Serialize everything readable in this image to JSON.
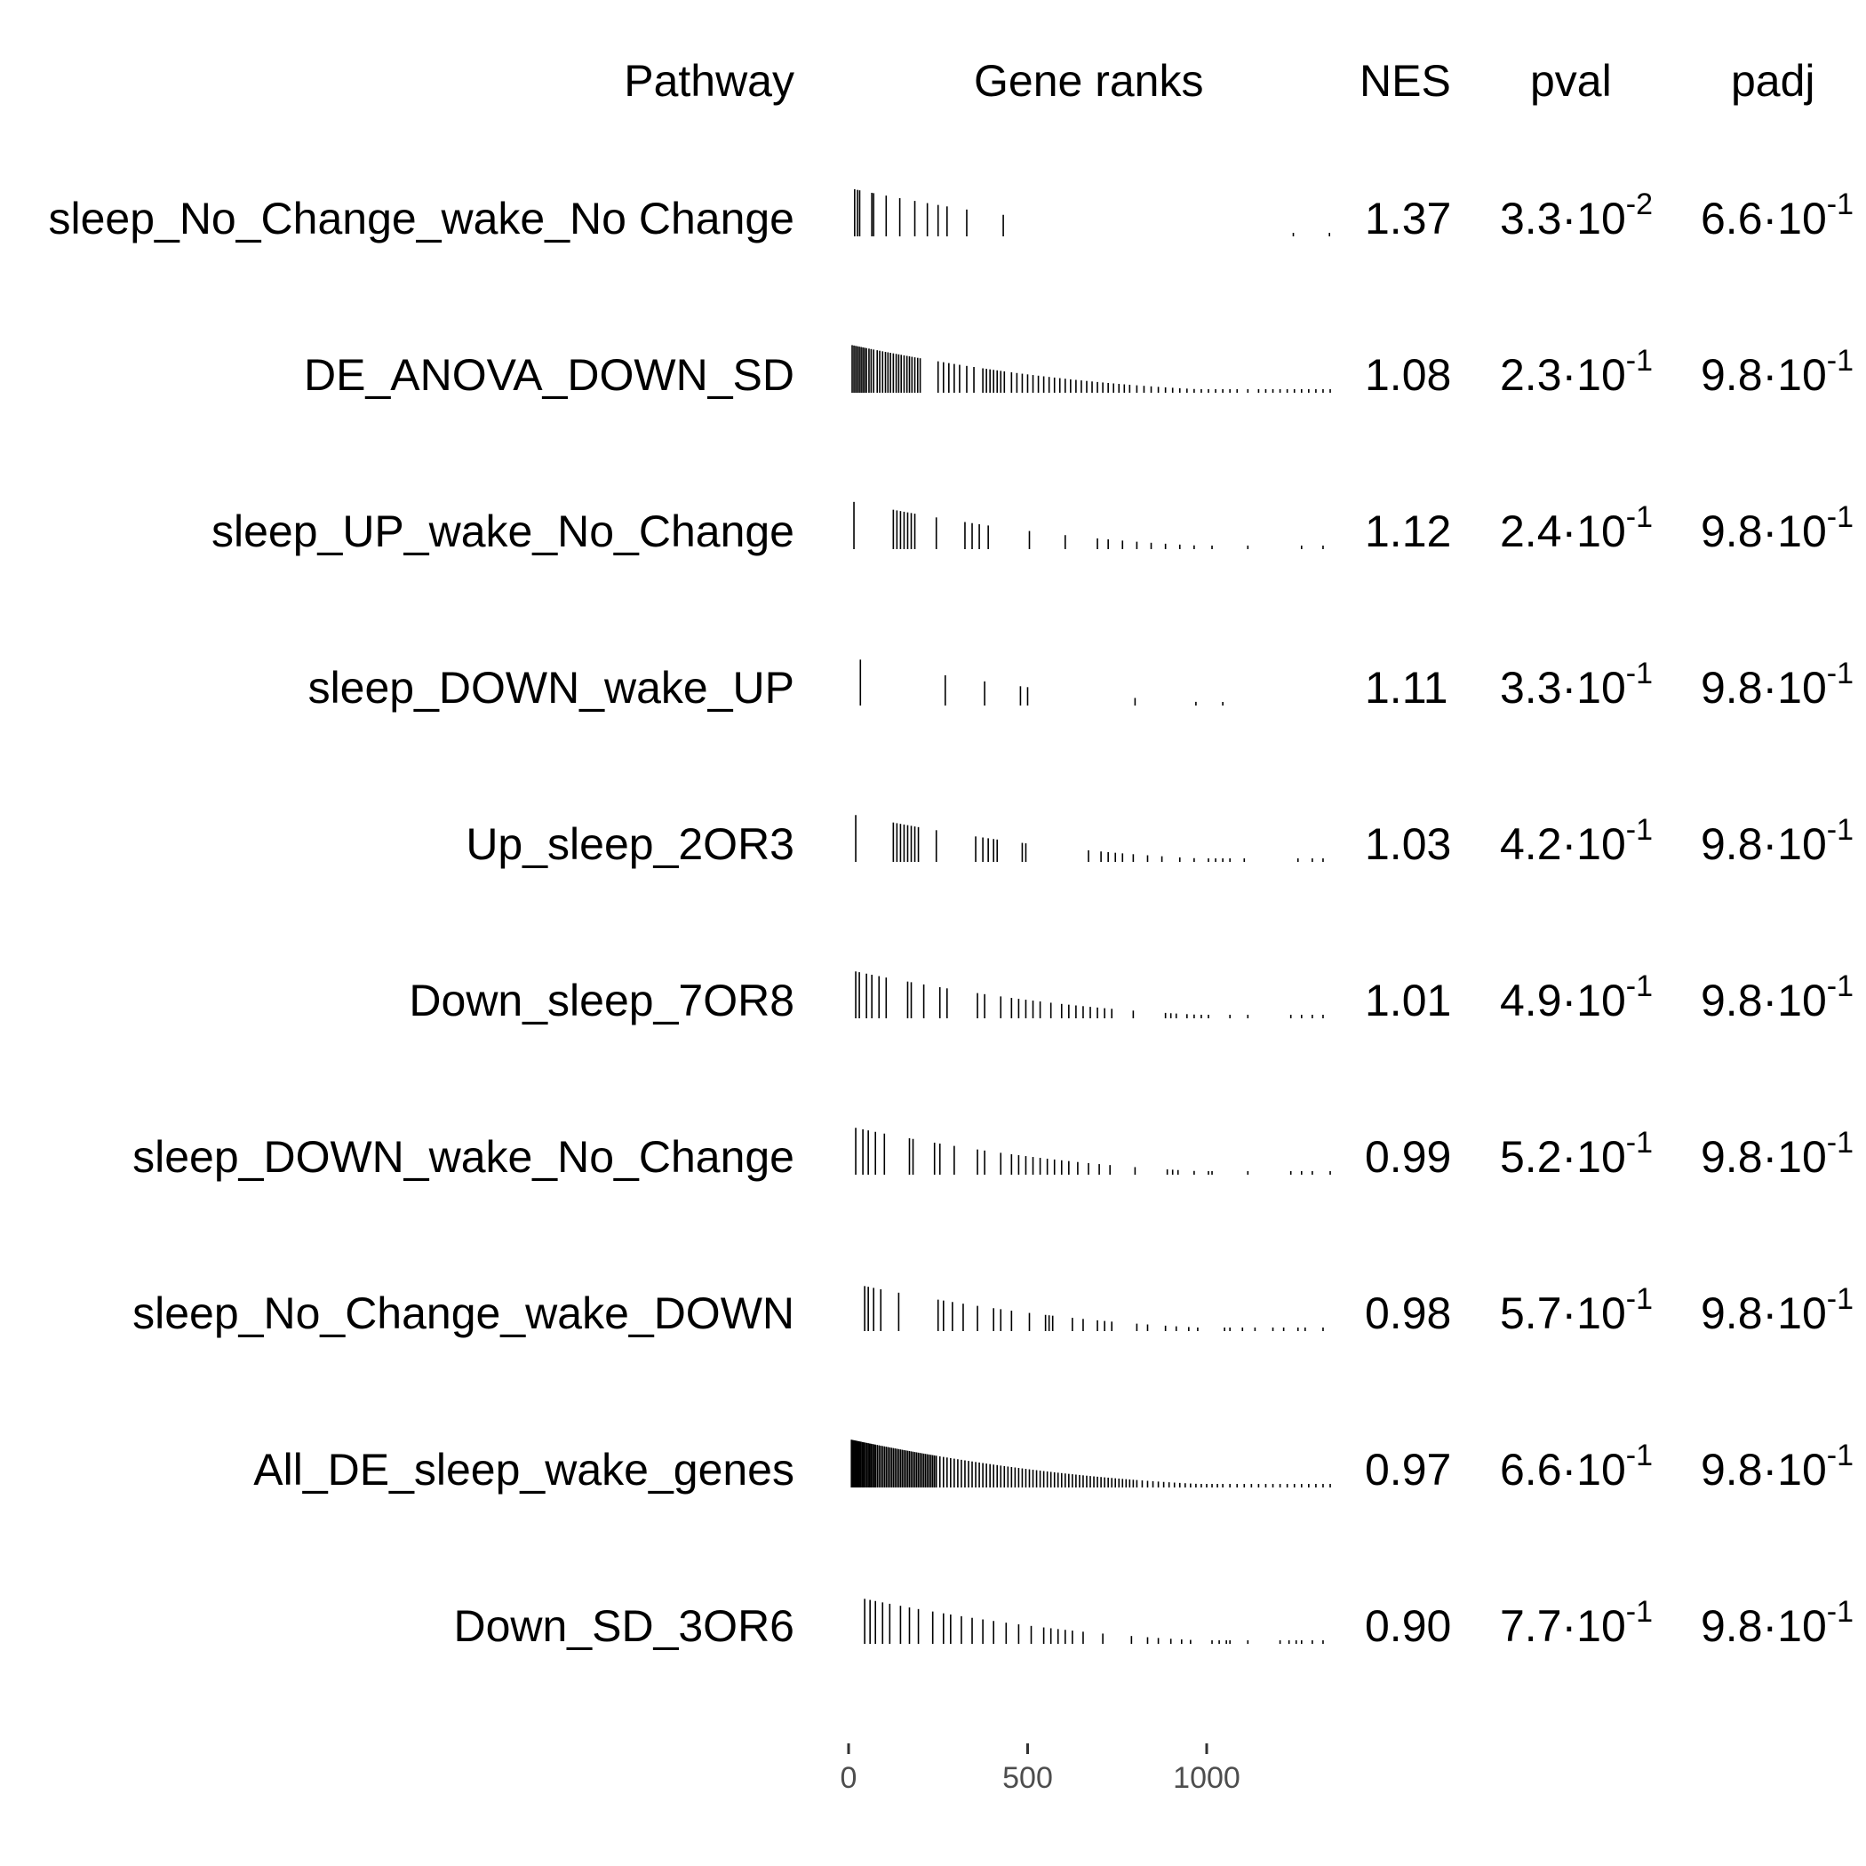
{
  "chart_data": {
    "type": "table",
    "columns": {
      "pathway": "Pathway",
      "ranks": "Gene ranks",
      "nes": "NES",
      "pval": "pval",
      "padj": "padj"
    },
    "rank_axis": {
      "range": [
        0,
        1350
      ],
      "ticks": [
        0,
        500,
        1000
      ],
      "tick_labels": [
        "0",
        "500",
        "1000"
      ]
    },
    "rows": [
      {
        "pathway": "sleep_No_Change_wake_No Change",
        "nes": "1.37",
        "pval": {
          "mantissa": "3.3",
          "exponent": "-2"
        },
        "padj": {
          "mantissa": "6.6",
          "exponent": "-1"
        },
        "ranks": [
          12,
          20,
          26,
          60,
          65,
          100,
          138,
          180,
          215,
          245,
          270,
          325,
          427,
          1237,
          1338
        ]
      },
      {
        "pathway": "DE_ANOVA_DOWN_SD",
        "nes": "1.08",
        "pval": {
          "mantissa": "2.3",
          "exponent": "-1"
        },
        "padj": {
          "mantissa": "9.8",
          "exponent": "-1"
        },
        "ranks": [
          5,
          10,
          15,
          20,
          25,
          30,
          35,
          40,
          45,
          52,
          58,
          65,
          75,
          82,
          90,
          98,
          105,
          112,
          120,
          128,
          135,
          142,
          150,
          158,
          165,
          172,
          180,
          188,
          195,
          245,
          260,
          275,
          290,
          305,
          325,
          345,
          370,
          380,
          390,
          400,
          410,
          420,
          430,
          450,
          465,
          480,
          495,
          510,
          525,
          540,
          555,
          570,
          585,
          600,
          615,
          630,
          645,
          660,
          675,
          690,
          705,
          720,
          735,
          750,
          765,
          780,
          800,
          820,
          840,
          860,
          880,
          900,
          920,
          940,
          960,
          980,
          1000,
          1020,
          1040,
          1060,
          1080,
          1110,
          1140,
          1160,
          1180,
          1200,
          1220,
          1240,
          1260,
          1280,
          1300,
          1320,
          1340
        ]
      },
      {
        "pathway": "sleep_UP_wake_No_Change",
        "nes": "1.12",
        "pval": {
          "mantissa": "2.4",
          "exponent": "-1"
        },
        "padj": {
          "mantissa": "9.8",
          "exponent": "-1"
        },
        "ranks": [
          10,
          120,
          130,
          140,
          150,
          160,
          170,
          180,
          240,
          320,
          340,
          360,
          385,
          500,
          600,
          690,
          720,
          760,
          800,
          840,
          880,
          920,
          960,
          1010,
          1110,
          1260,
          1320
        ]
      },
      {
        "pathway": "sleep_DOWN_wake_UP",
        "nes": "1.11",
        "pval": {
          "mantissa": "3.3",
          "exponent": "-1"
        },
        "padj": {
          "mantissa": "9.8",
          "exponent": "-1"
        },
        "ranks": [
          28,
          265,
          375,
          475,
          495,
          795,
          965,
          1040
        ]
      },
      {
        "pathway": "Up_sleep_2OR3",
        "nes": "1.03",
        "pval": {
          "mantissa": "4.2",
          "exponent": "-1"
        },
        "padj": {
          "mantissa": "9.8",
          "exponent": "-1"
        },
        "ranks": [
          15,
          120,
          130,
          140,
          150,
          160,
          170,
          180,
          190,
          240,
          350,
          370,
          385,
          400,
          410,
          480,
          490,
          665,
          700,
          720,
          740,
          760,
          790,
          830,
          870,
          920,
          960,
          1000,
          1020,
          1040,
          1060,
          1100,
          1250,
          1290,
          1320
        ]
      },
      {
        "pathway": "Down_sleep_7OR8",
        "nes": "1.01",
        "pval": {
          "mantissa": "4.9",
          "exponent": "-1"
        },
        "padj": {
          "mantissa": "9.8",
          "exponent": "-1"
        },
        "ranks": [
          15,
          25,
          45,
          60,
          80,
          100,
          160,
          170,
          205,
          250,
          270,
          355,
          375,
          420,
          450,
          470,
          490,
          510,
          530,
          560,
          590,
          610,
          630,
          650,
          670,
          690,
          710,
          730,
          790,
          880,
          895,
          910,
          940,
          960,
          980,
          1000,
          1060,
          1110,
          1230,
          1260,
          1290,
          1320
        ]
      },
      {
        "pathway": "sleep_DOWN_wake_No_Change",
        "nes": "0.99",
        "pval": {
          "mantissa": "5.2",
          "exponent": "-1"
        },
        "padj": {
          "mantissa": "9.8",
          "exponent": "-1"
        },
        "ranks": [
          15,
          35,
          50,
          70,
          95,
          165,
          175,
          235,
          250,
          290,
          355,
          375,
          420,
          450,
          470,
          490,
          510,
          530,
          550,
          570,
          590,
          610,
          635,
          665,
          695,
          725,
          795,
          885,
          900,
          915,
          960,
          1000,
          1010,
          1110,
          1230,
          1260,
          1290,
          1340
        ]
      },
      {
        "pathway": "sleep_No_Change_wake_DOWN",
        "nes": "0.98",
        "pval": {
          "mantissa": "5.7",
          "exponent": "-1"
        },
        "padj": {
          "mantissa": "9.8",
          "exponent": "-1"
        },
        "ranks": [
          40,
          50,
          65,
          85,
          135,
          245,
          260,
          285,
          315,
          355,
          400,
          420,
          450,
          500,
          545,
          555,
          565,
          620,
          650,
          690,
          710,
          730,
          800,
          830,
          880,
          910,
          945,
          970,
          1045,
          1060,
          1095,
          1130,
          1180,
          1210,
          1250,
          1270,
          1320
        ]
      },
      {
        "pathway": "All_DE_sleep_wake_genes",
        "nes": "0.97",
        "pval": {
          "mantissa": "6.6",
          "exponent": "-1"
        },
        "padj": {
          "mantissa": "9.8",
          "exponent": "-1"
        },
        "ranks": [
          3,
          6,
          9,
          12,
          15,
          18,
          21,
          24,
          27,
          30,
          34,
          38,
          42,
          46,
          50,
          54,
          58,
          62,
          66,
          70,
          75,
          80,
          85,
          90,
          95,
          100,
          105,
          110,
          115,
          120,
          125,
          130,
          135,
          140,
          145,
          150,
          155,
          160,
          165,
          170,
          175,
          180,
          185,
          190,
          195,
          200,
          205,
          210,
          215,
          220,
          225,
          230,
          235,
          240,
          250,
          260,
          270,
          280,
          290,
          300,
          310,
          320,
          330,
          340,
          350,
          360,
          370,
          380,
          390,
          400,
          410,
          420,
          430,
          440,
          450,
          460,
          470,
          480,
          490,
          500,
          510,
          520,
          530,
          540,
          550,
          560,
          570,
          580,
          590,
          600,
          610,
          620,
          630,
          640,
          650,
          660,
          670,
          680,
          690,
          700,
          710,
          720,
          730,
          740,
          750,
          760,
          770,
          780,
          790,
          800,
          815,
          830,
          845,
          860,
          875,
          890,
          905,
          920,
          935,
          950,
          965,
          980,
          995,
          1010,
          1025,
          1040,
          1060,
          1080,
          1100,
          1120,
          1140,
          1160,
          1180,
          1200,
          1220,
          1240,
          1260,
          1280,
          1300,
          1320,
          1340
        ]
      },
      {
        "pathway": "Down_SD_3OR6",
        "nes": "0.90",
        "pval": {
          "mantissa": "7.7",
          "exponent": "-1"
        },
        "padj": {
          "mantissa": "9.8",
          "exponent": "-1"
        },
        "ranks": [
          40,
          55,
          70,
          90,
          110,
          140,
          165,
          190,
          230,
          260,
          280,
          310,
          340,
          370,
          400,
          435,
          470,
          505,
          540,
          560,
          580,
          600,
          620,
          650,
          705,
          785,
          830,
          860,
          895,
          925,
          950,
          1010,
          1030,
          1050,
          1060,
          1110,
          1200,
          1225,
          1245,
          1260,
          1290,
          1320
        ]
      }
    ]
  }
}
